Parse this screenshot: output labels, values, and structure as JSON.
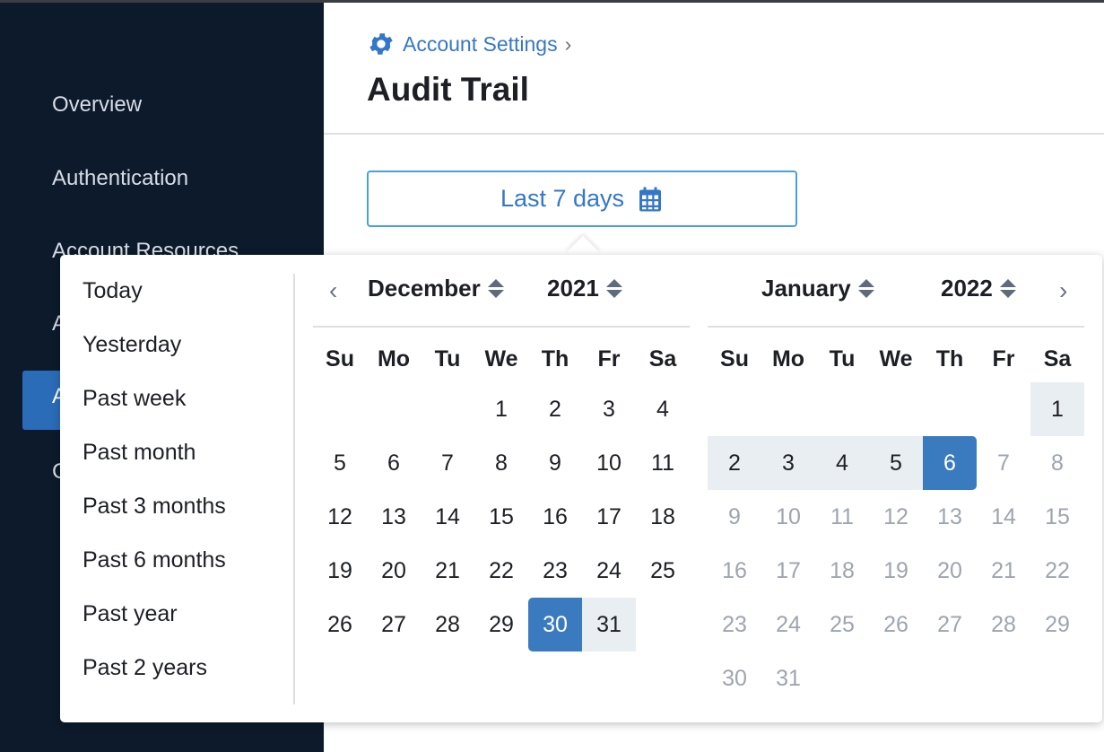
{
  "sidebar": {
    "items": [
      {
        "label": "Overview"
      },
      {
        "label": "Authentication"
      },
      {
        "label": "Account Resources"
      },
      {
        "label": "A"
      },
      {
        "label": "A",
        "active": true
      },
      {
        "label": "C"
      }
    ]
  },
  "header": {
    "breadcrumb": "Account Settings",
    "breadcrumb_icon": "gear-icon",
    "title": "Audit Trail"
  },
  "range_button": {
    "label": "Last 7 days",
    "icon": "calendar-icon"
  },
  "presets": [
    "Today",
    "Yesterday",
    "Past week",
    "Past month",
    "Past 3 months",
    "Past 6 months",
    "Past year",
    "Past 2 years"
  ],
  "weekdays": [
    "Su",
    "Mo",
    "Tu",
    "We",
    "Th",
    "Fr",
    "Sa"
  ],
  "colors": {
    "accent": "#3a7bbf",
    "range": "#e9eef3",
    "sidebar": "#0c1a2b",
    "link": "#3477c9"
  },
  "calendars": [
    {
      "month": "December",
      "year": "2021",
      "first_weekday": 3,
      "days": 31,
      "selection": {
        "start": 30,
        "range_to": 31
      },
      "muted_from": null
    },
    {
      "month": "January",
      "year": "2022",
      "first_weekday": 6,
      "days": 31,
      "selection": {
        "range_from": 1,
        "end": 6
      },
      "muted_from": 7
    }
  ]
}
